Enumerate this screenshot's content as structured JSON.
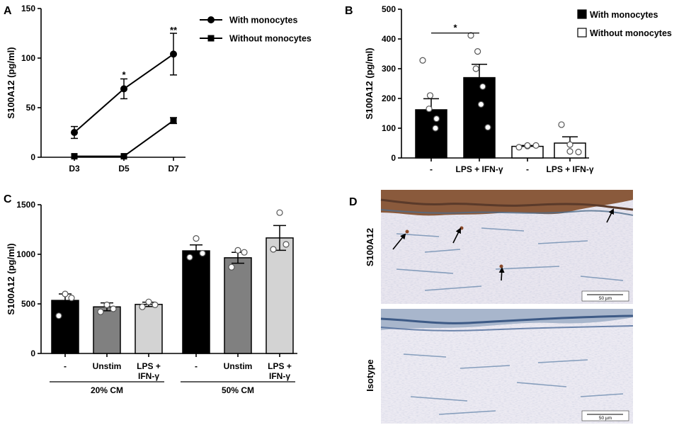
{
  "chart_data": [
    {
      "panel": "A",
      "type": "line",
      "categories": [
        "D3",
        "D5",
        "D7"
      ],
      "ylabel": "S100A12 (pg/ml)",
      "ylim": [
        0,
        150
      ],
      "yticks": [
        0,
        50,
        100,
        150
      ],
      "legend": "top-right",
      "series": [
        {
          "name": "With monocytes",
          "marker": "circle",
          "values": [
            25,
            69,
            104
          ],
          "err": [
            6,
            10,
            21
          ]
        },
        {
          "name": "Without monocytes",
          "marker": "square",
          "values": [
            1,
            1,
            37
          ],
          "err": [
            1,
            1,
            3
          ]
        }
      ],
      "annotations": [
        {
          "category": "D5",
          "text": "*",
          "y": 83
        },
        {
          "category": "D7",
          "text": "**",
          "y": 128
        }
      ]
    },
    {
      "panel": "B",
      "type": "bar",
      "categories": [
        "-",
        "LPS + IFN-γ",
        "-",
        "LPS + IFN-γ"
      ],
      "ylabel": "S100A12 (pg/ml)",
      "ylim": [
        0,
        500
      ],
      "yticks": [
        0,
        100,
        200,
        300,
        400,
        500
      ],
      "legend": "top-right",
      "legend_entries": [
        {
          "name": "With monocytes",
          "fill": "#000000"
        },
        {
          "name": "Without monocytes",
          "fill": "#ffffff"
        }
      ],
      "bars": [
        {
          "value": 162,
          "err": 37,
          "fill": "#000000",
          "points": [
            328,
            210,
            165,
            132,
            100
          ]
        },
        {
          "value": 270,
          "err": 45,
          "fill": "#000000",
          "points": [
            412,
            358,
            300,
            240,
            180,
            103
          ]
        },
        {
          "value": 39,
          "err": 3,
          "fill": "#ffffff",
          "points": [
            36,
            40,
            42,
            42
          ]
        },
        {
          "value": 50,
          "err": 21,
          "fill": "#ffffff",
          "points": [
            112,
            45,
            22,
            20
          ]
        }
      ],
      "significance": [
        {
          "from": 0,
          "to": 1,
          "text": "*",
          "y": 420
        }
      ]
    },
    {
      "panel": "C",
      "type": "bar",
      "categories": [
        "-",
        "Unstim",
        "LPS +\nIFN-γ",
        "-",
        "Unstim",
        "LPS +\nIFN-γ"
      ],
      "groups": [
        {
          "label": "20% CM",
          "from": 0,
          "to": 2
        },
        {
          "label": "50% CM",
          "from": 3,
          "to": 5
        }
      ],
      "ylabel": "S100A12 (pg/ml)",
      "ylim": [
        0,
        1500
      ],
      "yticks": [
        0,
        500,
        1000,
        1500
      ],
      "bars": [
        {
          "value": 535,
          "err": 65,
          "fill": "#000000",
          "points": [
            600,
            560,
            380
          ]
        },
        {
          "value": 470,
          "err": 40,
          "fill": "#808080",
          "points": [
            490,
            450,
            420
          ]
        },
        {
          "value": 495,
          "err": 22,
          "fill": "#d3d3d3",
          "points": [
            520,
            490,
            470
          ]
        },
        {
          "value": 1035,
          "err": 60,
          "fill": "#000000",
          "points": [
            1160,
            1010,
            970
          ]
        },
        {
          "value": 965,
          "err": 55,
          "fill": "#808080",
          "points": [
            1040,
            1020,
            870
          ]
        },
        {
          "value": 1165,
          "err": 125,
          "fill": "#d3d3d3",
          "points": [
            1420,
            1100,
            1050
          ]
        }
      ]
    }
  ],
  "panels": {
    "a": "A",
    "b": "B",
    "c": "C",
    "d": "D"
  },
  "panel_d": {
    "top_label": "S100A12",
    "bottom_label": "Isotype",
    "scale_top": "50 µm",
    "scale_bottom": "50 µm"
  }
}
